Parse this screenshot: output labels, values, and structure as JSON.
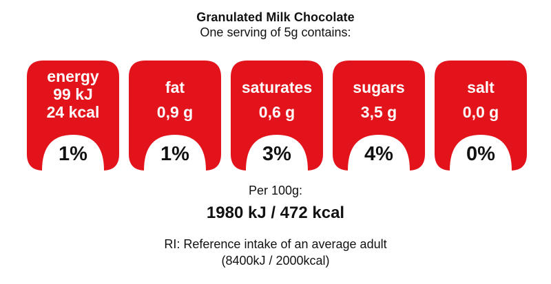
{
  "header": {
    "title": "Granulated Milk Chocolate",
    "subtitle": "One serving of 5g contains:"
  },
  "colors": {
    "label_red": "#e3131b",
    "text": "#111111",
    "background": "#ffffff"
  },
  "nutrients": [
    {
      "name": "energy",
      "value_line1": "99 kJ",
      "value_line2": "24 kcal",
      "percent": "1%"
    },
    {
      "name": "fat",
      "value": "0,9 g",
      "percent": "1%"
    },
    {
      "name": "saturates",
      "value": "0,6 g",
      "percent": "3%"
    },
    {
      "name": "sugars",
      "value": "3,5 g",
      "percent": "4%"
    },
    {
      "name": "salt",
      "value": "0,0 g",
      "percent": "0%"
    }
  ],
  "per100": {
    "label": "Per 100g:",
    "value": "1980 kJ / 472 kcal"
  },
  "reference": {
    "line1": "RI: Reference intake of an average adult",
    "line2": "(8400kJ / 2000kcal)"
  }
}
